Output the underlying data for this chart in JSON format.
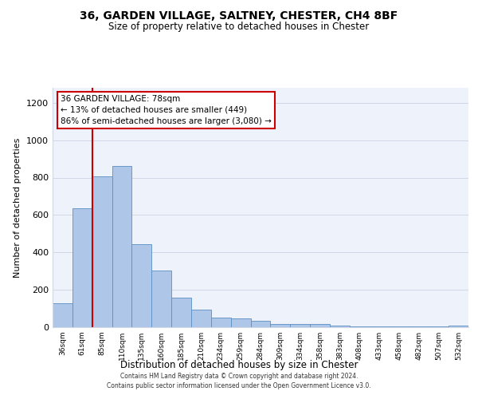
{
  "title": "36, GARDEN VILLAGE, SALTNEY, CHESTER, CH4 8BF",
  "subtitle": "Size of property relative to detached houses in Chester",
  "xlabel": "Distribution of detached houses by size in Chester",
  "ylabel": "Number of detached properties",
  "bar_labels": [
    "36sqm",
    "61sqm",
    "85sqm",
    "110sqm",
    "135sqm",
    "160sqm",
    "185sqm",
    "210sqm",
    "234sqm",
    "259sqm",
    "284sqm",
    "309sqm",
    "334sqm",
    "358sqm",
    "383sqm",
    "408sqm",
    "433sqm",
    "458sqm",
    "482sqm",
    "507sqm",
    "532sqm"
  ],
  "bar_values": [
    130,
    635,
    805,
    860,
    445,
    305,
    158,
    95,
    50,
    45,
    35,
    15,
    18,
    15,
    8,
    5,
    5,
    5,
    5,
    5,
    10
  ],
  "bar_color": "#aec6e8",
  "bar_edge_color": "#5a8fc2",
  "red_line_color": "#cc0000",
  "annotation_text": "36 GARDEN VILLAGE: 78sqm\n← 13% of detached houses are smaller (449)\n86% of semi-detached houses are larger (3,080) →",
  "annotation_box_color": "#ffffff",
  "annotation_box_edge_color": "#cc0000",
  "red_line_x": 1.5,
  "ylim": [
    0,
    1280
  ],
  "yticks": [
    0,
    200,
    400,
    600,
    800,
    1000,
    1200
  ],
  "grid_color": "#d0d8e8",
  "bg_color": "#eef2fa",
  "footer_line1": "Contains HM Land Registry data © Crown copyright and database right 2024.",
  "footer_line2": "Contains public sector information licensed under the Open Government Licence v3.0."
}
